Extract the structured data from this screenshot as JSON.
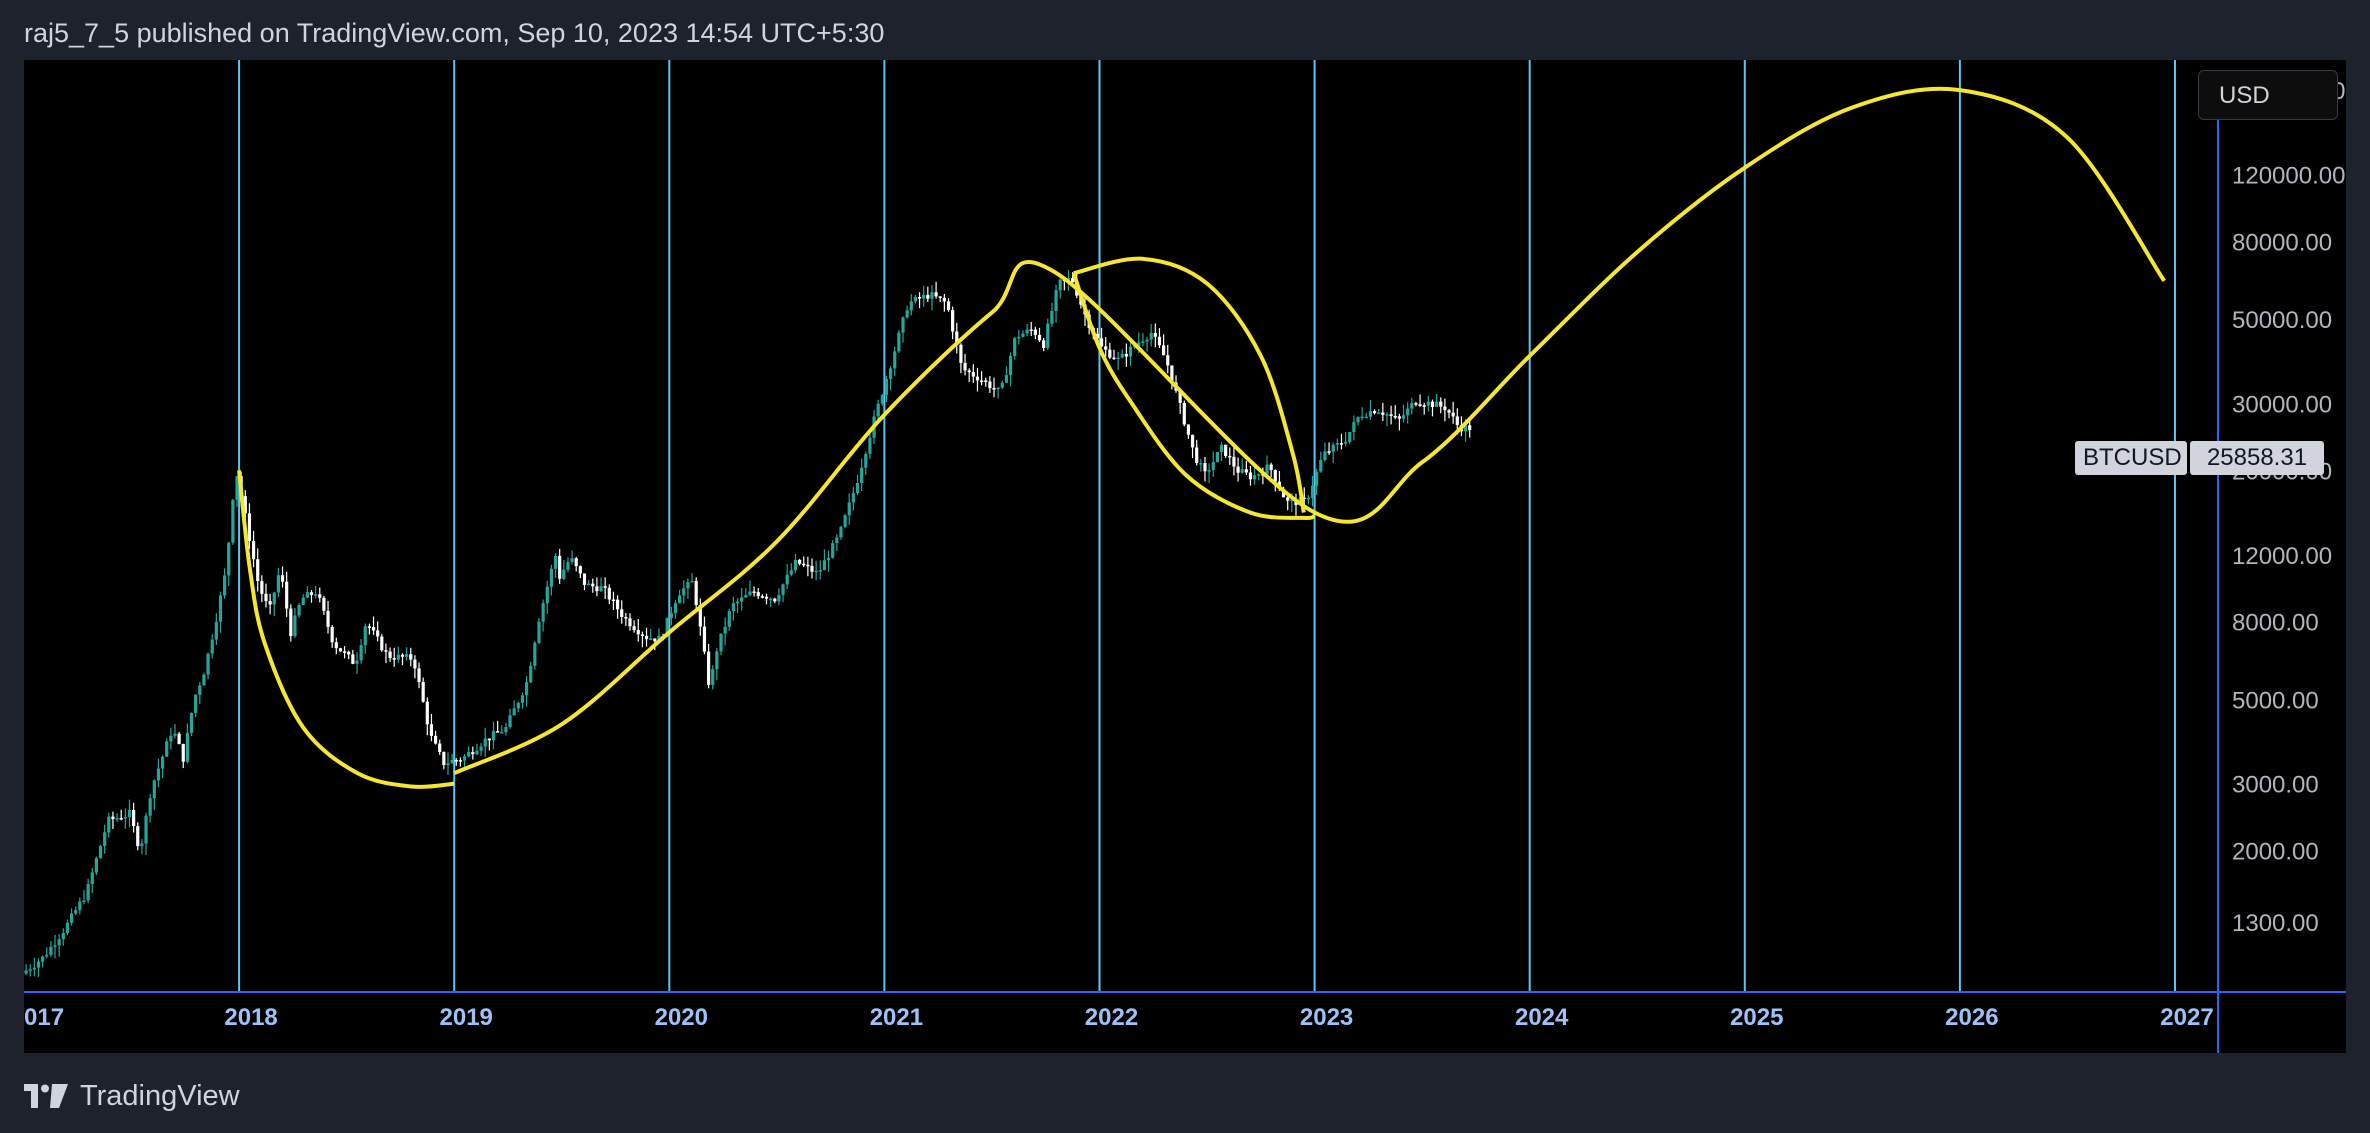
{
  "header": {
    "publish_text": "raj5_7_5 published on TradingView.com, Sep 10, 2023 14:54 UTC+5:30"
  },
  "toolbar": {
    "currency_label": "USD"
  },
  "price_label": {
    "symbol": "BTCUSD",
    "value": "25858.31"
  },
  "footer": {
    "brand": "TradingView"
  },
  "colors": {
    "background": "#000000",
    "frame": "#1e222d",
    "up_candle": "#26a69a",
    "down_candle": "#ffffff",
    "cycle_line": "#5fc4ef",
    "curve": "#f5e632",
    "axis_line": "#2962ff",
    "axis_text": "#b2b5be",
    "x_tick_text": "#9fc1f5"
  },
  "chart_data": {
    "type": "candlestick",
    "y_scale": "log",
    "x_ticks": [
      "017",
      "2018",
      "2019",
      "2020",
      "2021",
      "2022",
      "2023",
      "2024",
      "2025",
      "2026",
      "2027"
    ],
    "y_ticks": [
      "200000.00",
      "120000.00",
      "80000.00",
      "50000.00",
      "30000.00",
      "20000.00",
      "12000.00",
      "8000.00",
      "5000.00",
      "3000.00",
      "2000.00",
      "1300.00"
    ],
    "xlim": [
      2017.0,
      2027.2
    ],
    "ylim": [
      850,
      240000
    ],
    "last_price": 25858.31,
    "vertical_lines": [
      2018,
      2019,
      2020,
      2021,
      2022,
      2023,
      2024,
      2025,
      2026,
      2027
    ],
    "price_path": [
      [
        2017.0,
        950
      ],
      [
        2017.1,
        1050
      ],
      [
        2017.2,
        1250
      ],
      [
        2017.3,
        1550
      ],
      [
        2017.4,
        2400
      ],
      [
        2017.5,
        2500
      ],
      [
        2017.55,
        2000
      ],
      [
        2017.6,
        2900
      ],
      [
        2017.7,
        4200
      ],
      [
        2017.75,
        3500
      ],
      [
        2017.8,
        5000
      ],
      [
        2017.85,
        6000
      ],
      [
        2017.9,
        8000
      ],
      [
        2017.95,
        11000
      ],
      [
        2017.98,
        17000
      ],
      [
        2018.0,
        19500
      ],
      [
        2018.05,
        14000
      ],
      [
        2018.1,
        10000
      ],
      [
        2018.15,
        8500
      ],
      [
        2018.2,
        11000
      ],
      [
        2018.25,
        7500
      ],
      [
        2018.3,
        9200
      ],
      [
        2018.37,
        9600
      ],
      [
        2018.45,
        7000
      ],
      [
        2018.55,
        6200
      ],
      [
        2018.6,
        8000
      ],
      [
        2018.7,
        6500
      ],
      [
        2018.82,
        6400
      ],
      [
        2018.9,
        4000
      ],
      [
        2018.96,
        3400
      ],
      [
        2019.05,
        3500
      ],
      [
        2019.15,
        3900
      ],
      [
        2019.25,
        4200
      ],
      [
        2019.35,
        5600
      ],
      [
        2019.4,
        8000
      ],
      [
        2019.48,
        12000
      ],
      [
        2019.5,
        10500
      ],
      [
        2019.55,
        11800
      ],
      [
        2019.62,
        10000
      ],
      [
        2019.7,
        9800
      ],
      [
        2019.8,
        8200
      ],
      [
        2019.9,
        7300
      ],
      [
        2019.97,
        7200
      ],
      [
        2020.05,
        9500
      ],
      [
        2020.12,
        10200
      ],
      [
        2020.2,
        5200
      ],
      [
        2020.22,
        6500
      ],
      [
        2020.3,
        8800
      ],
      [
        2020.4,
        9600
      ],
      [
        2020.5,
        9200
      ],
      [
        2020.6,
        11500
      ],
      [
        2020.7,
        10700
      ],
      [
        2020.8,
        13500
      ],
      [
        2020.88,
        18500
      ],
      [
        2020.96,
        27000
      ],
      [
        2021.05,
        40000
      ],
      [
        2021.12,
        55000
      ],
      [
        2021.22,
        58000
      ],
      [
        2021.3,
        55000
      ],
      [
        2021.37,
        37000
      ],
      [
        2021.45,
        35000
      ],
      [
        2021.55,
        32000
      ],
      [
        2021.62,
        45000
      ],
      [
        2021.7,
        47000
      ],
      [
        2021.75,
        43000
      ],
      [
        2021.82,
        62000
      ],
      [
        2021.88,
        64000
      ],
      [
        2021.95,
        50000
      ],
      [
        2022.02,
        42000
      ],
      [
        2022.1,
        39000
      ],
      [
        2022.2,
        44000
      ],
      [
        2022.25,
        46000
      ],
      [
        2022.32,
        39000
      ],
      [
        2022.38,
        30000
      ],
      [
        2022.45,
        22000
      ],
      [
        2022.5,
        19500
      ],
      [
        2022.58,
        23000
      ],
      [
        2022.65,
        20000
      ],
      [
        2022.72,
        19200
      ],
      [
        2022.8,
        20500
      ],
      [
        2022.88,
        16500
      ],
      [
        2022.97,
        16600
      ],
      [
        2023.05,
        22000
      ],
      [
        2023.15,
        24000
      ],
      [
        2023.22,
        28000
      ],
      [
        2023.3,
        29000
      ],
      [
        2023.4,
        27000
      ],
      [
        2023.48,
        30500
      ],
      [
        2023.55,
        30000
      ],
      [
        2023.62,
        29200
      ],
      [
        2023.68,
        26000
      ],
      [
        2023.72,
        25858.31
      ]
    ],
    "curve_path": [
      [
        2018.0,
        20000
      ],
      [
        2018.05,
        9000
      ],
      [
        2018.15,
        5200
      ],
      [
        2018.3,
        3700
      ],
      [
        2018.5,
        3100
      ],
      [
        2018.75,
        3000
      ],
      [
        2019.0,
        3200
      ],
      [
        2019.5,
        4300
      ],
      [
        2020.0,
        7500
      ],
      [
        2020.5,
        13000
      ],
      [
        2021.0,
        28000
      ],
      [
        2021.5,
        52000
      ],
      [
        2021.8,
        66000
      ],
      [
        2022.2,
        72000
      ],
      [
        2022.5,
        60000
      ],
      [
        2022.75,
        38000
      ],
      [
        2022.95,
        18000
      ],
      [
        2023.0,
        15500
      ],
      [
        2023.5,
        21000
      ],
      [
        2024.0,
        40000
      ],
      [
        2024.5,
        75000
      ],
      [
        2025.0,
        125000
      ],
      [
        2025.5,
        180000
      ],
      [
        2026.0,
        200000
      ],
      [
        2026.5,
        150000
      ],
      [
        2026.95,
        63000
      ]
    ],
    "early_curve_path": [
      [
        2018.0,
        20000
      ],
      [
        2018.05,
        11000
      ],
      [
        2018.12,
        7000
      ],
      [
        2018.3,
        4200
      ],
      [
        2018.55,
        3200
      ],
      [
        2018.8,
        2950
      ],
      [
        2019.0,
        3000
      ]
    ],
    "inner_loop_path": [
      [
        2021.88,
        66000
      ],
      [
        2022.0,
        42000
      ],
      [
        2022.15,
        30000
      ],
      [
        2022.4,
        19500
      ],
      [
        2022.7,
        15500
      ],
      [
        2022.95,
        15000
      ],
      [
        2023.0,
        15200
      ]
    ],
    "outer_loop_path": [
      [
        2021.88,
        66000
      ],
      [
        2022.2,
        72000
      ],
      [
        2022.5,
        62000
      ],
      [
        2022.75,
        40000
      ],
      [
        2022.9,
        22000
      ],
      [
        2022.95,
        15500
      ]
    ]
  }
}
